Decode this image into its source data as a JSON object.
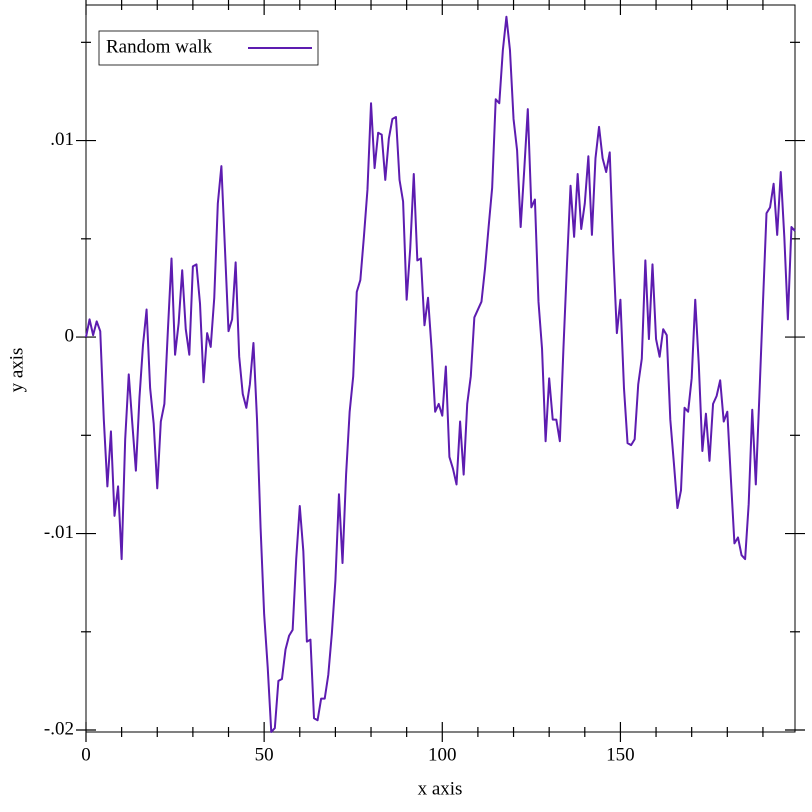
{
  "chart_data": {
    "type": "line",
    "x_label": "x axis",
    "y_label": "y axis",
    "x": [
      0,
      1,
      2,
      3,
      4,
      5,
      6,
      7,
      8,
      9,
      10,
      11,
      12,
      13,
      14,
      15,
      16,
      17,
      18,
      19,
      20,
      21,
      22,
      23,
      24,
      25,
      26,
      27,
      28,
      29,
      30,
      31,
      32,
      33,
      34,
      35,
      36,
      37,
      38,
      39,
      40,
      41,
      42,
      43,
      44,
      45,
      46,
      47,
      48,
      49,
      50,
      51,
      52,
      53,
      54,
      55,
      56,
      57,
      58,
      59,
      60,
      61,
      62,
      63,
      64,
      65,
      66,
      67,
      68,
      69,
      70,
      71,
      72,
      73,
      74,
      75,
      76,
      77,
      78,
      79,
      80,
      81,
      82,
      83,
      84,
      85,
      86,
      87,
      88,
      89,
      90,
      91,
      92,
      93,
      94,
      95,
      96,
      97,
      98,
      99,
      100,
      101,
      102,
      103,
      104,
      105,
      106,
      107,
      108,
      109,
      110,
      111,
      112,
      113,
      114,
      115,
      116,
      117,
      118,
      119,
      120,
      121,
      122,
      123,
      124,
      125,
      126,
      127,
      128,
      129,
      130,
      131,
      132,
      133,
      134,
      135,
      136,
      137,
      138,
      139,
      140,
      141,
      142,
      143,
      144,
      145,
      146,
      147,
      148,
      149,
      150,
      151,
      152,
      153,
      154,
      155,
      156,
      157,
      158,
      159,
      160,
      161,
      162,
      163,
      164,
      165,
      166,
      167,
      168,
      169,
      170,
      171,
      172,
      173,
      174,
      175,
      176,
      177,
      178,
      179,
      180,
      181,
      182,
      183,
      184,
      185,
      186,
      187,
      188,
      189,
      190,
      191,
      192,
      193,
      194,
      195,
      196,
      197,
      198,
      199
    ],
    "series": [
      {
        "name": "Random walk",
        "color": "#5d1cb0",
        "values": [
          0,
          0.0009,
          0.0001,
          0.0008,
          0.0003,
          -0.0042,
          -0.0076,
          -0.0048,
          -0.0091,
          -0.0076,
          -0.0113,
          -0.0052,
          -0.0019,
          -0.0044,
          -0.0068,
          -0.0031,
          -0.0004,
          0.0014,
          -0.0026,
          -0.0044,
          -0.0077,
          -0.0043,
          -0.0034,
          0.0004,
          0.004,
          -0.0009,
          0.0007,
          0.0034,
          0.0004,
          -0.0009,
          0.0036,
          0.0037,
          0.0017,
          -0.0023,
          0.0002,
          -0.0005,
          0.002,
          0.0068,
          0.0087,
          0.0045,
          0.0003,
          0.0009,
          0.0038,
          -0.001,
          -0.0029,
          -0.0036,
          -0.0024,
          -0.0003,
          -0.0042,
          -0.0097,
          -0.0141,
          -0.0168,
          -0.0201,
          -0.0199,
          -0.0175,
          -0.0174,
          -0.0159,
          -0.0152,
          -0.0149,
          -0.0113,
          -0.0086,
          -0.0109,
          -0.0155,
          -0.0154,
          -0.0194,
          -0.0195,
          -0.0184,
          -0.0184,
          -0.0172,
          -0.0151,
          -0.0124,
          -0.008,
          -0.0115,
          -0.007,
          -0.0038,
          -0.002,
          0.0023,
          0.0029,
          0.0051,
          0.0075,
          0.0119,
          0.0086,
          0.0104,
          0.0103,
          0.008,
          0.0101,
          0.0111,
          0.0112,
          0.008,
          0.0069,
          0.0019,
          0.0045,
          0.0083,
          0.0039,
          0.004,
          0.0006,
          0.002,
          -0.0006,
          -0.0038,
          -0.0034,
          -0.004,
          -0.0015,
          -0.0061,
          -0.0067,
          -0.0075,
          -0.0043,
          -0.007,
          -0.0034,
          -0.002,
          0.001,
          0.0014,
          0.0018,
          0.0035,
          0.0056,
          0.0076,
          0.0121,
          0.0119,
          0.0146,
          0.0163,
          0.0146,
          0.0111,
          0.0095,
          0.0056,
          0.0085,
          0.0116,
          0.0066,
          0.007,
          0.0018,
          -0.0006,
          -0.0053,
          -0.0021,
          -0.0042,
          -0.0042,
          -0.0053,
          -0.0006,
          0.0037,
          0.0077,
          0.0051,
          0.0083,
          0.0055,
          0.0068,
          0.0092,
          0.0052,
          0.0091,
          0.0107,
          0.0091,
          0.0084,
          0.0094,
          0.0043,
          0.0002,
          0.0019,
          -0.0026,
          -0.0054,
          -0.0055,
          -0.0052,
          -0.0024,
          -0.0011,
          0.0039,
          -0.0001,
          0.0037,
          -0.0001,
          -0.001,
          0.0004,
          0.0001,
          -0.0042,
          -0.0064,
          -0.0087,
          -0.0078,
          -0.0036,
          -0.0038,
          -0.0021,
          0.0019,
          -0.0014,
          -0.0058,
          -0.0039,
          -0.0063,
          -0.0034,
          -0.003,
          -0.0022,
          -0.0043,
          -0.0038,
          -0.0072,
          -0.0105,
          -0.0102,
          -0.0111,
          -0.0113,
          -0.0085,
          -0.0037,
          -0.0075,
          -0.003,
          0.0017,
          0.0063,
          0.0066,
          0.0078,
          0.0052,
          0.0084,
          0.0051,
          0.0009,
          0.0056,
          0.0054
        ]
      }
    ],
    "xlim": [
      0,
      199
    ],
    "ylim": [
      -0.0201,
      0.0169
    ],
    "xticks": [
      0,
      50,
      100,
      150
    ],
    "yticks": [
      {
        "value": -0.02,
        "label": "-.02"
      },
      {
        "value": -0.01,
        "label": "-.01"
      },
      0,
      {
        "value": 0.01,
        "label": ".01"
      }
    ],
    "xminorticks": [
      10,
      20,
      30,
      40,
      60,
      70,
      80,
      90,
      110,
      120,
      130,
      140,
      160,
      170,
      180,
      190
    ],
    "yminorticks": [
      -0.015,
      -0.005,
      0.005,
      0.015
    ],
    "legend": "top-left"
  }
}
